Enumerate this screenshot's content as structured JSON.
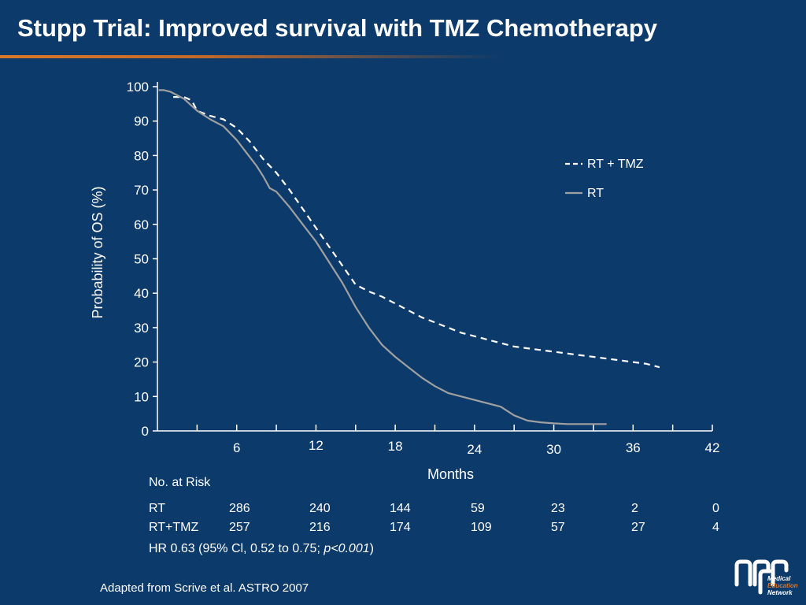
{
  "slide": {
    "title": "Stupp Trial: Improved survival with TMZ Chemotherapy",
    "source": "Adapted from Scrive et al. ASTRO 2007",
    "logo_text": [
      "Medical",
      "Education",
      "Network"
    ]
  },
  "chart_data": {
    "type": "line",
    "title": "",
    "xlabel": "Months",
    "ylabel": "Probability of OS (%)",
    "xlim": [
      0,
      42
    ],
    "ylim": [
      0,
      100
    ],
    "x_ticks": [
      6,
      12,
      18,
      24,
      30,
      36,
      42
    ],
    "x_minor_ticks": [
      3,
      6,
      9,
      12,
      15,
      18,
      21,
      24,
      27,
      30,
      33,
      36,
      39,
      42
    ],
    "y_ticks": [
      0,
      10,
      20,
      30,
      40,
      50,
      60,
      70,
      80,
      90,
      100
    ],
    "grid": false,
    "legend_position": "right",
    "series": [
      {
        "name": "RT + TMZ",
        "style": "dashed",
        "color": "#ffffff",
        "x": [
          1.2,
          2.0,
          2.6,
          3.0,
          4.0,
          5.0,
          6.0,
          7.0,
          8.0,
          9.0,
          10.0,
          11.0,
          12.0,
          13.0,
          14.0,
          15.0,
          16.0,
          17.0,
          18.0,
          19.0,
          20.0,
          21.0,
          22.0,
          23.0,
          24.0,
          25.0,
          26.0,
          27.0,
          28.0,
          29.0,
          30.0,
          31.0,
          32.0,
          33.0,
          34.0,
          35.0,
          36.0,
          37.0,
          38.0
        ],
        "y": [
          97,
          97,
          96,
          93,
          91.5,
          90.5,
          88,
          84,
          79,
          75,
          70,
          64.5,
          59,
          53.5,
          48,
          42.5,
          40.5,
          39,
          37,
          35,
          33,
          31.5,
          30,
          28.5,
          27.5,
          26.5,
          25.5,
          24.5,
          24,
          23.5,
          23,
          22.5,
          22,
          21.5,
          21,
          20.5,
          20,
          19.5,
          18.5
        ]
      },
      {
        "name": "RT",
        "style": "solid",
        "color": "#a0a0a0",
        "x": [
          0.1,
          0.5,
          1.0,
          2.0,
          3.0,
          4.0,
          5.0,
          6.0,
          7.0,
          7.5,
          8.0,
          8.5,
          9.0,
          10.0,
          11.0,
          12.0,
          13.0,
          14.0,
          15.0,
          16.0,
          17.0,
          18.0,
          19.0,
          20.0,
          21.0,
          22.0,
          23.0,
          24.0,
          25.0,
          26.0,
          27.0,
          28.0,
          29.0,
          30.0,
          31.0,
          32.0,
          33.0,
          34.0
        ],
        "y": [
          99,
          99,
          98.5,
          96.5,
          93,
          90.5,
          88.5,
          84.5,
          79.5,
          77,
          74,
          70.5,
          69.5,
          65,
          60,
          55,
          49,
          43,
          36,
          30,
          25,
          21.5,
          18.5,
          15.5,
          13,
          11,
          10,
          9,
          8,
          7,
          4.5,
          3,
          2.5,
          2.2,
          2.0,
          2.0,
          2.0,
          2.0
        ]
      }
    ]
  },
  "risk_table": {
    "heading": "No. at Risk",
    "rows": [
      {
        "label": "RT",
        "values": [
          "286",
          "240",
          "144",
          "59",
          "23",
          "2",
          "0"
        ]
      },
      {
        "label": "RT+TMZ",
        "values": [
          "257",
          "216",
          "174",
          "109",
          "57",
          "27",
          "4"
        ]
      }
    ],
    "hr_text": "HR 0.63 (95% Cl, 0.52 to 0.75; ",
    "hr_p": "p<0.001",
    "hr_close": ")"
  }
}
